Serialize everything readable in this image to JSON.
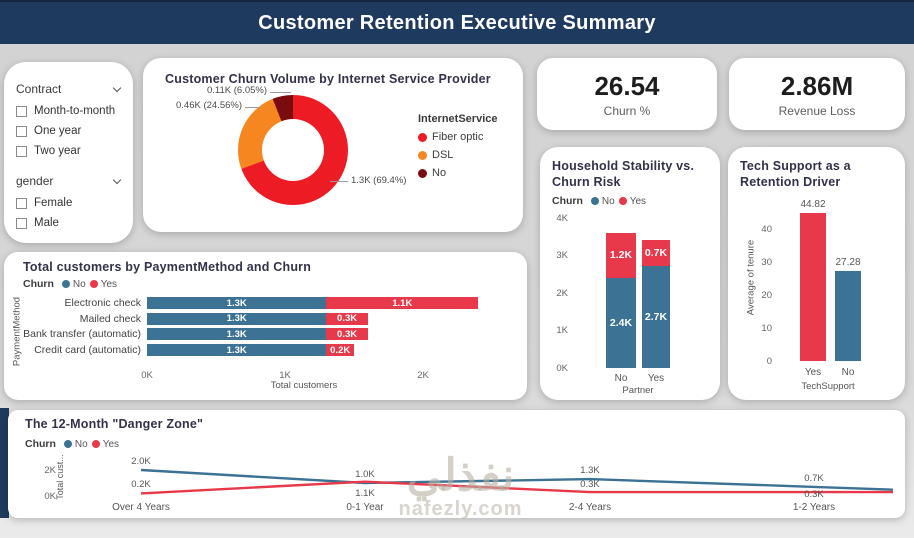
{
  "header": {
    "title": "Customer Retention Executive Summary"
  },
  "colors": {
    "navy": "#1F3A5F",
    "churn_no_blue": "#3C7294",
    "churn_yes_red": "#E7394A",
    "donut_red": "#ED1C24",
    "donut_orange": "#F6861F",
    "donut_maroon": "#7A0C10",
    "background": "#D6D6D6",
    "card": "#FFFFFF"
  },
  "filters": {
    "contract": {
      "label": "Contract",
      "options": [
        "Month-to-month",
        "One year",
        "Two year"
      ]
    },
    "gender": {
      "label": "gender",
      "options": [
        "Female",
        "Male"
      ]
    }
  },
  "kpis": [
    {
      "value": "26.54",
      "label": "Churn %"
    },
    {
      "value": "2.86M",
      "label": "Revenue Loss"
    }
  ],
  "chart_data": [
    {
      "type": "pie",
      "title": "Customer Churn Volume by Internet Service Provider",
      "legend_title": "InternetService",
      "legend_position": "right",
      "slices": [
        {
          "label": "Fiber optic",
          "value_label": "1.3K (69.4%)",
          "value_k": 1.3,
          "percent": 69.4,
          "color": "#ED1C24"
        },
        {
          "label": "DSL",
          "value_label": "0.46K (24.56%)",
          "value_k": 0.46,
          "percent": 24.56,
          "color": "#F6861F"
        },
        {
          "label": "No",
          "value_label": "0.11K (6.05%)",
          "value_k": 0.11,
          "percent": 6.05,
          "color": "#7A0C10"
        }
      ]
    },
    {
      "type": "bar",
      "title": "Household Stability vs. Churn Risk",
      "legend": {
        "title": "Churn",
        "items": [
          {
            "label": "No",
            "color": "#3C7294"
          },
          {
            "label": "Yes",
            "color": "#E7394A"
          }
        ]
      },
      "categories": [
        "No",
        "Yes"
      ],
      "xlabel": "Partner",
      "yticks": [
        "0K",
        "1K",
        "2K",
        "3K",
        "4K"
      ],
      "ylim": [
        0,
        4
      ],
      "series": [
        {
          "name": "No",
          "color": "#3C7294",
          "values": [
            2.4,
            2.7
          ],
          "labels": [
            "2.4K",
            "2.7K"
          ]
        },
        {
          "name": "Yes",
          "color": "#E7394A",
          "values": [
            1.2,
            0.7
          ],
          "labels": [
            "1.2K",
            "0.7K"
          ]
        }
      ]
    },
    {
      "type": "bar",
      "title": "Tech Support as a Retention Driver",
      "ylabel": "Average of tenure",
      "xlabel": "TechSupport",
      "categories": [
        "Yes",
        "No"
      ],
      "yticks": [
        0,
        10,
        20,
        30,
        40
      ],
      "ylim": [
        0,
        50
      ],
      "values": [
        44.82,
        27.28
      ],
      "labels": [
        "44.82",
        "27.28"
      ],
      "bar_colors": [
        "#E7394A",
        "#3C7294"
      ]
    },
    {
      "type": "bar",
      "title": "Total customers by PaymentMethod and Churn",
      "legend": {
        "title": "Churn",
        "items": [
          {
            "label": "No",
            "color": "#3C7294"
          },
          {
            "label": "Yes",
            "color": "#E7394A"
          }
        ]
      },
      "ylabel": "PaymentMethod",
      "xlabel": "Total customers",
      "categories": [
        "Electronic check",
        "Mailed check",
        "Bank transfer (automatic)",
        "Credit card (automatic)"
      ],
      "xticks": [
        "0K",
        "1K",
        "2K"
      ],
      "xlim": [
        0,
        2.72
      ],
      "series": [
        {
          "name": "No",
          "color": "#3C7294",
          "values": [
            1.3,
            1.3,
            1.3,
            1.3
          ],
          "labels": [
            "1.3K",
            "1.3K",
            "1.3K",
            "1.3K"
          ]
        },
        {
          "name": "Yes",
          "color": "#E7394A",
          "values": [
            1.1,
            0.3,
            0.3,
            0.2
          ],
          "labels": [
            "1.1K",
            "0.3K",
            "0.3K",
            "0.2K"
          ]
        }
      ]
    },
    {
      "type": "line",
      "title": "The 12-Month \"Danger Zone\"",
      "legend": {
        "title": "Churn",
        "items": [
          {
            "label": "No",
            "color": "#3C7294"
          },
          {
            "label": "Yes",
            "color": "#E7394A"
          }
        ]
      },
      "ylabel": "Total cust...",
      "categories": [
        "Over 4 Years",
        "0-1 Year",
        "2-4 Years",
        "1-2 Years"
      ],
      "yticks": [
        "0K",
        "2K"
      ],
      "ylim": [
        0,
        2.6
      ],
      "series": [
        {
          "name": "No",
          "color": "#3C7294",
          "values": [
            2.0,
            1.0,
            1.3,
            0.7
          ],
          "labels": [
            "2.0K",
            "1.0K",
            "1.3K",
            "0.7K"
          ]
        },
        {
          "name": "Yes",
          "color": "#E7394A",
          "values": [
            0.2,
            1.1,
            0.3,
            0.3
          ],
          "labels": [
            "0.2K",
            "1.1K",
            "0.3K",
            "0.3K"
          ]
        }
      ]
    }
  ],
  "watermark": {
    "arabic": "نفذلي",
    "latin": "nafezly.com"
  }
}
